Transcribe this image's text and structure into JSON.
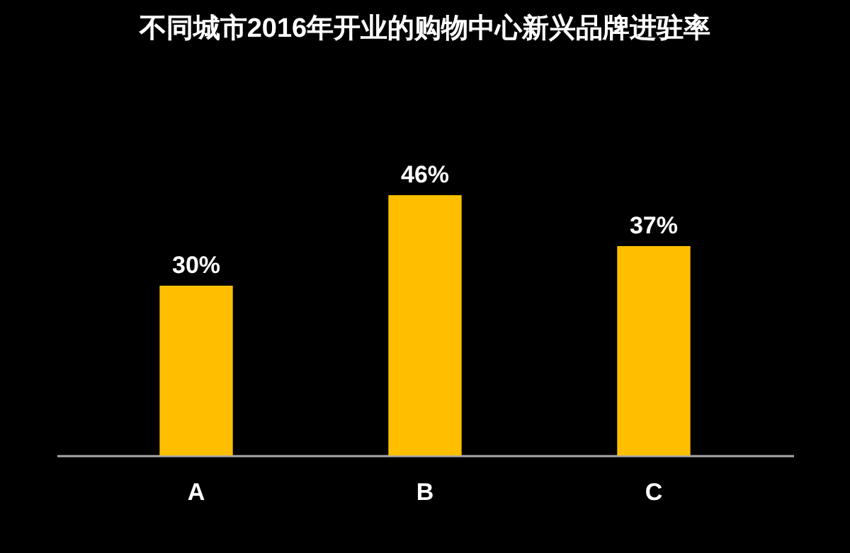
{
  "chart_data": {
    "type": "bar",
    "title": "不同城市2016年开业的购物中心新兴品牌进驻率",
    "categories": [
      "A",
      "B",
      "C"
    ],
    "values": [
      30,
      46,
      37
    ],
    "value_labels": [
      "30%",
      "46%",
      "37%"
    ],
    "color": "#ffbf00"
  }
}
